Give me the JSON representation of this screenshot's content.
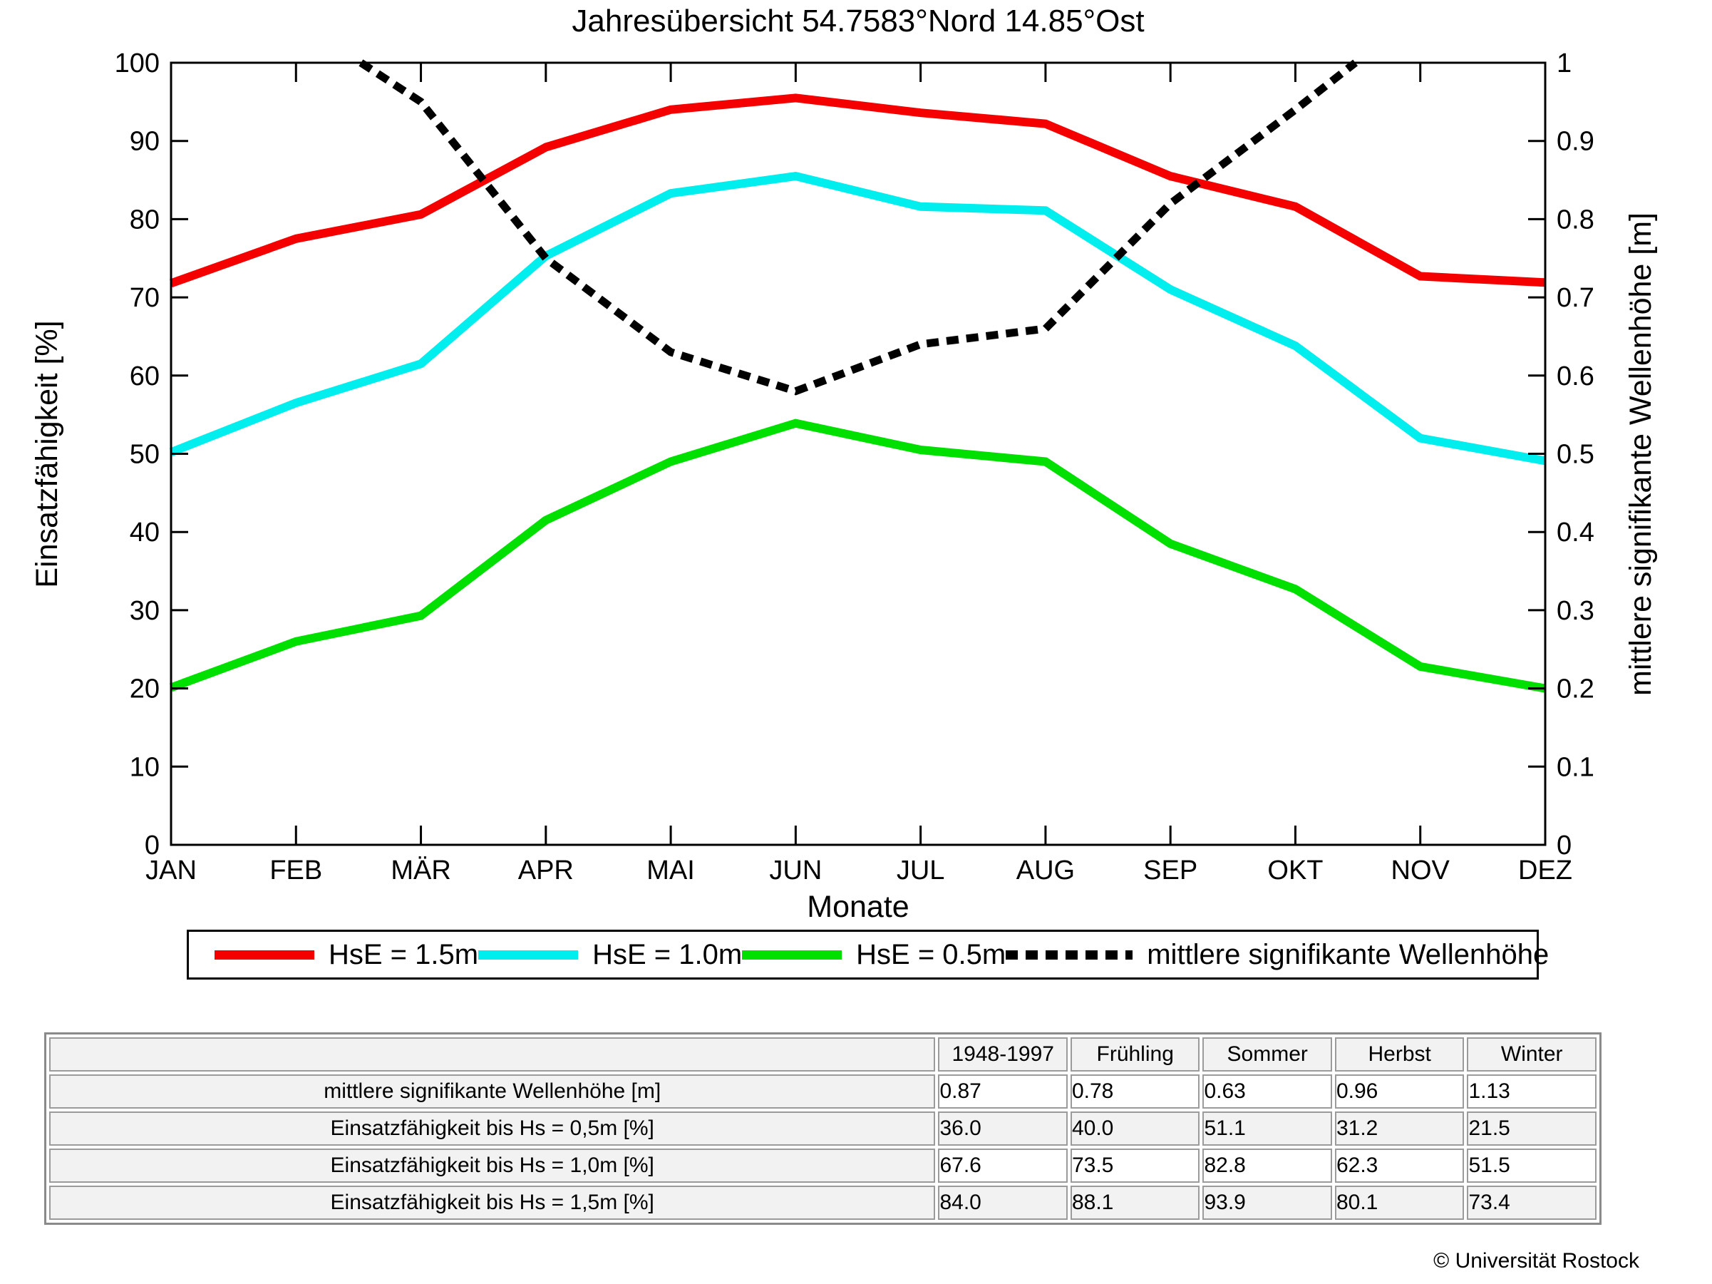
{
  "title": "Jahresübersicht  54.7583°Nord  14.85°Ost",
  "chart_data": {
    "type": "line",
    "title": "Jahresübersicht  54.7583°Nord  14.85°Ost",
    "categories": [
      "JAN",
      "FEB",
      "MÄR",
      "APR",
      "MAI",
      "JUN",
      "JUL",
      "AUG",
      "SEP",
      "OKT",
      "NOV",
      "DEZ"
    ],
    "xlabel": "Monate",
    "grid": false,
    "legend_position": "bottom",
    "left_axis": {
      "label": "Einsatzfähigkeit [%]",
      "min": 0,
      "max": 100,
      "tick_step": 10,
      "ticks": [
        "0",
        "10",
        "20",
        "30",
        "40",
        "50",
        "60",
        "70",
        "80",
        "90",
        "100"
      ]
    },
    "right_axis": {
      "label": "mittlere signifikante Wellenhöhe [m]",
      "min": 0,
      "max": 1,
      "tick_step": 0.1,
      "ticks": [
        "0",
        "0.1",
        "0.2",
        "0.3",
        "0.4",
        "0.5",
        "0.6",
        "0.7",
        "0.8",
        "0.9",
        "1"
      ]
    },
    "series": [
      {
        "name": "HsE = 1.5m",
        "axis": "left",
        "style": "solid",
        "color": "#f40000",
        "values": [
          71.8,
          77.5,
          80.6,
          89.2,
          94.0,
          95.5,
          93.6,
          92.2,
          85.5,
          81.6,
          72.7,
          71.9
        ]
      },
      {
        "name": "HsE = 1.0m",
        "axis": "left",
        "style": "solid",
        "color": "#00eeee",
        "values": [
          50.2,
          56.5,
          61.5,
          75.3,
          83.3,
          85.5,
          81.6,
          81.1,
          71.0,
          63.8,
          52.0,
          49.1
        ]
      },
      {
        "name": "HsE = 0.5m",
        "axis": "left",
        "style": "solid",
        "color": "#00e000",
        "values": [
          20.1,
          26.0,
          29.3,
          41.5,
          49.0,
          53.9,
          50.5,
          49.0,
          38.5,
          32.7,
          22.8,
          20.0
        ]
      },
      {
        "name": "mittlere signifikante Wellenhöhe",
        "axis": "right",
        "style": "dotted",
        "color": "#000000",
        "values": [
          null,
          null,
          0.95,
          0.75,
          0.63,
          0.58,
          0.64,
          0.66,
          0.82,
          0.94,
          null,
          null
        ],
        "clipped_above": 1.0,
        "clip_entry_month_index": 1.52,
        "clip_exit_month_index": 9.48
      }
    ]
  },
  "table": {
    "column_headers": [
      "1948-1997",
      "Frühling",
      "Sommer",
      "Herbst",
      "Winter"
    ],
    "rows": [
      {
        "label": "mittlere signifikante Wellenhöhe [m]",
        "values": [
          "0.87",
          "0.78",
          "0.63",
          "0.96",
          "1.13"
        ]
      },
      {
        "label": "Einsatzfähigkeit bis Hs = 0,5m [%]",
        "values": [
          "36.0",
          "40.0",
          "51.1",
          "31.2",
          "21.5"
        ]
      },
      {
        "label": "Einsatzfähigkeit bis Hs = 1,0m [%]",
        "values": [
          "67.6",
          "73.5",
          "82.8",
          "62.3",
          "51.5"
        ]
      },
      {
        "label": "Einsatzfähigkeit bis Hs = 1,5m [%]",
        "values": [
          "84.0",
          "88.1",
          "93.9",
          "80.1",
          "73.4"
        ]
      }
    ]
  },
  "footer": {
    "copyright": "© Universität Rostock"
  },
  "colors": {
    "red": "#f40000",
    "cyan": "#00eeee",
    "green": "#00e000",
    "black": "#000000",
    "table_header_bg": "#f2f2f2",
    "table_border": "#9b9b9b"
  }
}
